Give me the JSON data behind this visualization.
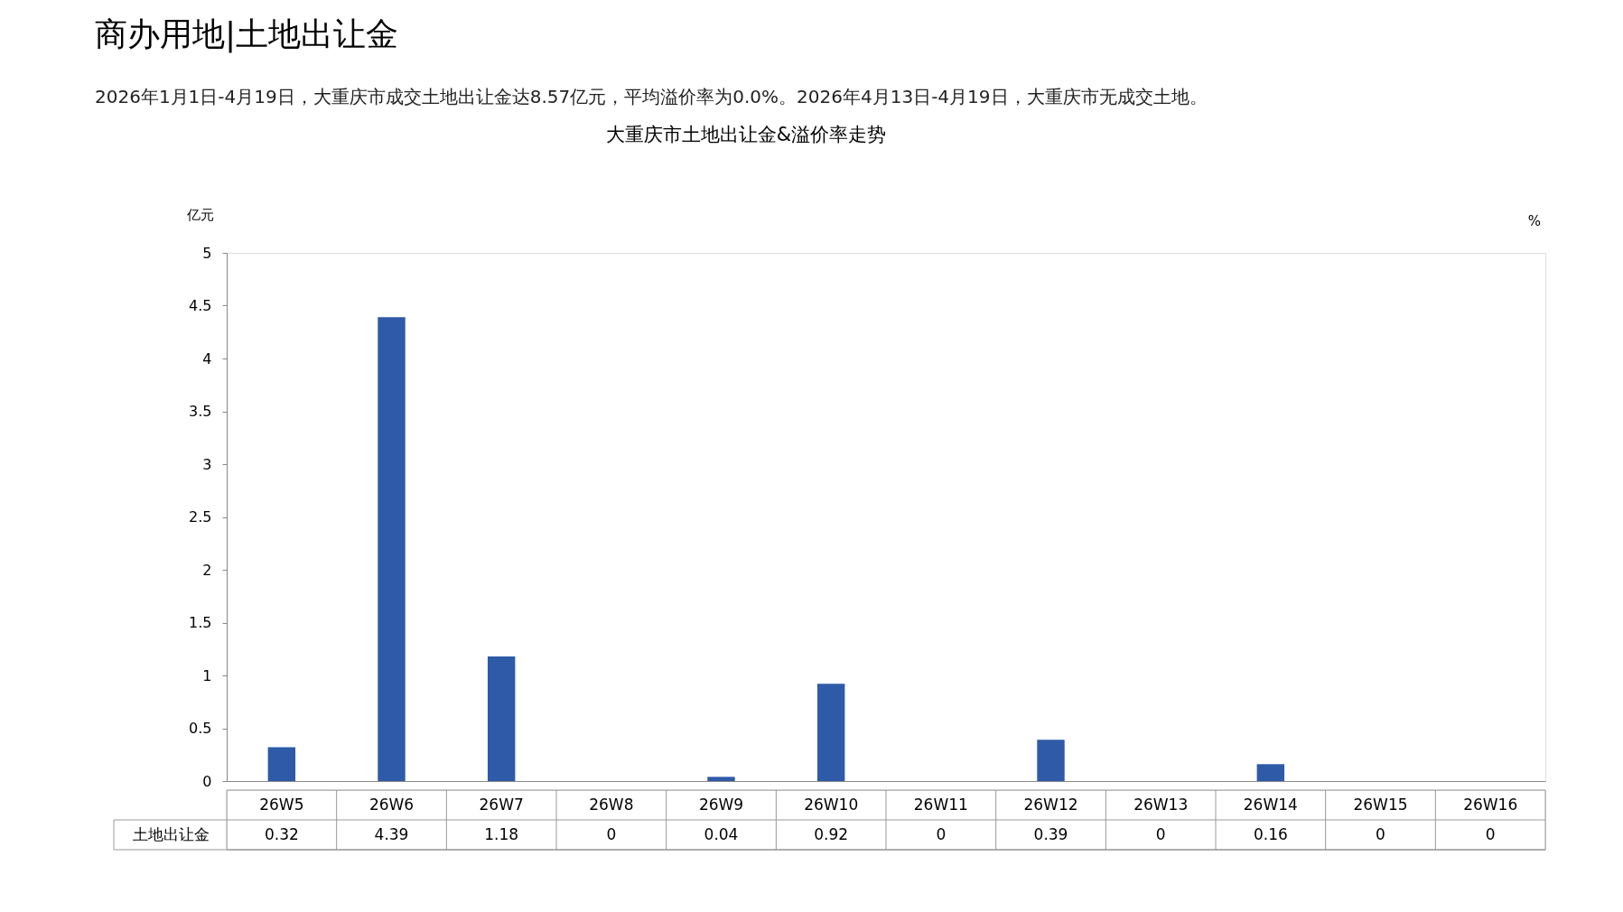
{
  "chart_data": {
    "type": "bar",
    "title": "商办用地|土地出让金",
    "subtitle": "2026年1月1日-4月19日，大重庆市成交土地出让金达8.57亿元，平均溢价率为0.0%。2026年4月13日-4月19日，大重庆市无成交土地。",
    "annotations": [
      "大重庆市土地出让金&溢价率走势"
    ],
    "ylabel": "亿元",
    "y2label": "%",
    "categories": [
      "26W5",
      "26W6",
      "26W7",
      "26W8",
      "26W9",
      "26W10",
      "26W11",
      "26W12",
      "26W13",
      "26W14",
      "26W15",
      "26W16"
    ],
    "series": [
      {
        "name": "土地出让金",
        "color": "#2e5aa8",
        "values": [
          0.32,
          4.39,
          1.18,
          0,
          0.04,
          0.92,
          0,
          0.39,
          0,
          0.16,
          0,
          0
        ]
      }
    ],
    "ylim": [
      0,
      5
    ],
    "yticks": [
      0,
      0.5,
      1,
      1.5,
      2,
      2.5,
      3,
      3.5,
      4,
      4.5,
      5
    ],
    "data_labels": true,
    "grid": false,
    "legend": "bottom"
  }
}
